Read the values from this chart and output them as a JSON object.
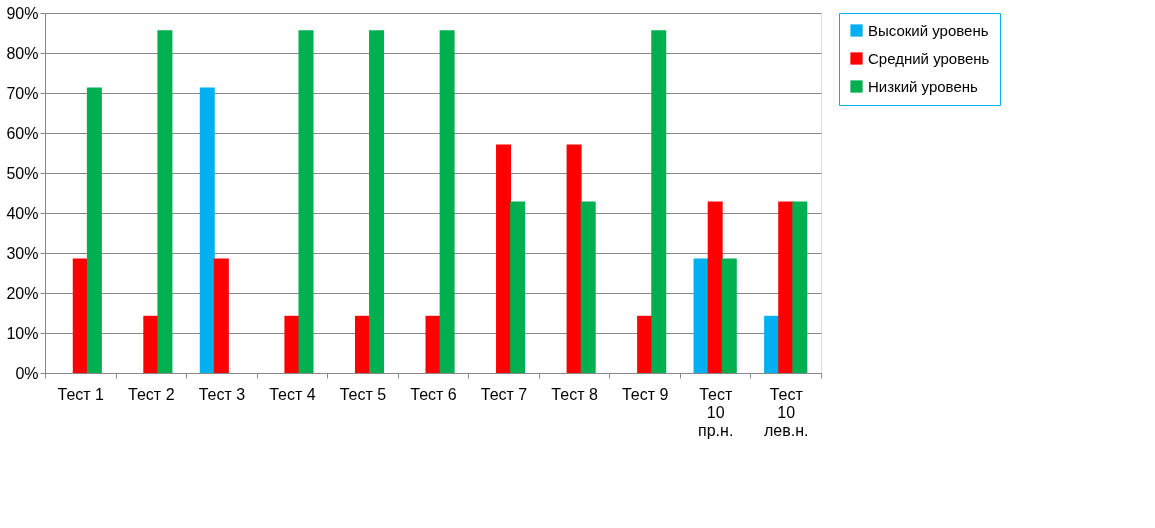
{
  "chart_data": {
    "type": "bar",
    "categories": [
      "Тест 1",
      "Тест 2",
      "Тест 3",
      "Тест 4",
      "Тест 5",
      "Тест 6",
      "Тест 7",
      "Тест 8",
      "Тест 9",
      "Тест 10 пр.н.",
      "Тест 10 лев.н."
    ],
    "series": [
      {
        "name": "Высокий уровень",
        "color": "#00b0f0",
        "values": [
          0,
          0,
          71.4,
          0,
          0,
          0,
          0,
          0,
          0,
          28.6,
          14.3
        ]
      },
      {
        "name": "Средний уровень",
        "color": "#ff0000",
        "values": [
          28.6,
          14.3,
          28.6,
          14.3,
          14.3,
          14.3,
          57.1,
          57.1,
          14.3,
          42.9,
          42.9
        ]
      },
      {
        "name": "Низкий уровень",
        "color": "#00b050",
        "values": [
          71.4,
          85.7,
          0,
          85.7,
          85.7,
          85.7,
          42.9,
          42.9,
          85.7,
          28.6,
          42.9
        ]
      }
    ],
    "ylim": [
      0,
      90
    ],
    "yticks": [
      {
        "value": 0,
        "label": "0%"
      },
      {
        "value": 10,
        "label": "10%"
      },
      {
        "value": 20,
        "label": "20%"
      },
      {
        "value": 30,
        "label": "30%"
      },
      {
        "value": 40,
        "label": "40%"
      },
      {
        "value": 50,
        "label": "50%"
      },
      {
        "value": 60,
        "label": "60%"
      },
      {
        "value": 70,
        "label": "70%"
      },
      {
        "value": 80,
        "label": "80%"
      },
      {
        "value": 90,
        "label": "90%"
      }
    ],
    "grid": "y",
    "legend": "right"
  }
}
